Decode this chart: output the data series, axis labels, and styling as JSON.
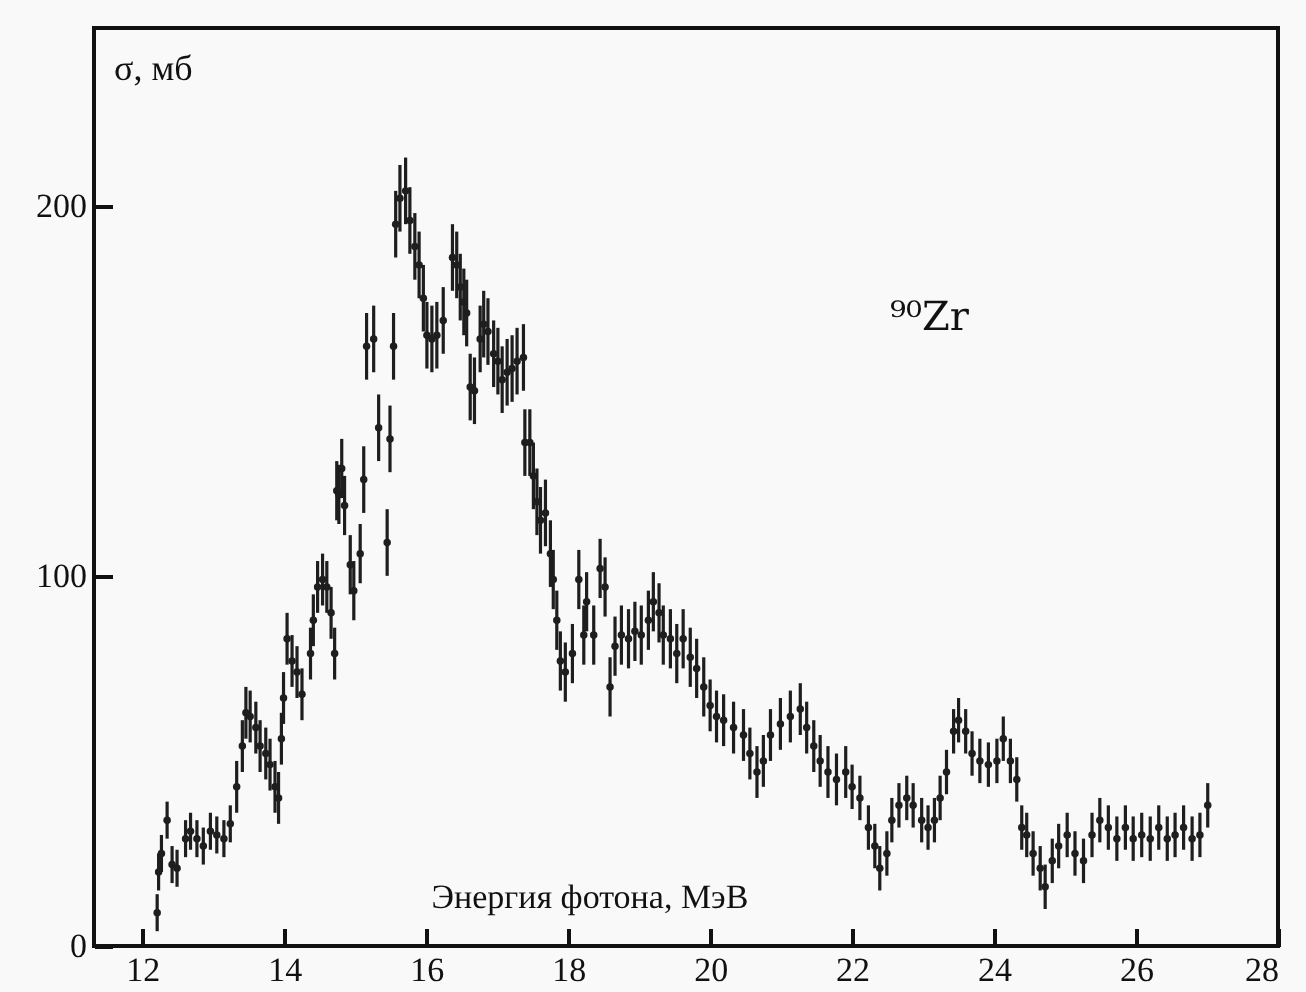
{
  "chart_data": {
    "type": "scatter",
    "ylabel": "σ, мб",
    "xlabel": "Энергия фотона, МэВ",
    "annotations": [
      "⁹⁰Zr"
    ],
    "color": "#1e1e1e",
    "marker": "circle",
    "xlim": [
      11.32,
      28
    ],
    "ylim": [
      0,
      248
    ],
    "xticks": [
      12,
      14,
      16,
      18,
      20,
      22,
      24,
      26,
      28
    ],
    "yticks": [
      0,
      100,
      200
    ],
    "x": [
      12.21,
      12.23,
      12.27,
      12.35,
      12.42,
      12.49,
      12.61,
      12.68,
      12.77,
      12.86,
      12.96,
      13.05,
      13.15,
      13.24,
      13.33,
      13.41,
      13.46,
      13.52,
      13.6,
      13.66,
      13.74,
      13.8,
      13.87,
      13.92,
      13.96,
      13.99,
      14.04,
      14.11,
      14.18,
      14.25,
      14.37,
      14.41,
      14.47,
      14.54,
      14.6,
      14.66,
      14.71,
      14.74,
      14.77,
      14.81,
      14.85,
      14.93,
      14.98,
      15.07,
      15.12,
      15.16,
      15.26,
      15.33,
      15.45,
      15.49,
      15.54,
      15.57,
      15.63,
      15.71,
      15.77,
      15.84,
      15.9,
      15.96,
      16.01,
      16.08,
      16.15,
      16.24,
      16.37,
      16.43,
      16.48,
      16.53,
      16.57,
      16.62,
      16.68,
      16.76,
      16.81,
      16.87,
      16.95,
      17.01,
      17.07,
      17.14,
      17.21,
      17.28,
      17.37,
      17.39,
      17.46,
      17.51,
      17.56,
      17.61,
      17.68,
      17.75,
      17.79,
      17.84,
      17.89,
      17.96,
      18.06,
      18.15,
      18.22,
      18.26,
      18.36,
      18.45,
      18.52,
      18.59,
      18.66,
      18.75,
      18.85,
      18.94,
      19.03,
      19.13,
      19.2,
      19.28,
      19.34,
      19.44,
      19.53,
      19.62,
      19.72,
      19.81,
      19.91,
      20.0,
      20.09,
      20.19,
      20.33,
      20.47,
      20.56,
      20.66,
      20.75,
      20.85,
      20.99,
      21.13,
      21.27,
      21.36,
      21.46,
      21.55,
      21.66,
      21.78,
      21.91,
      22.0,
      22.11,
      22.23,
      22.32,
      22.39,
      22.49,
      22.56,
      22.66,
      22.77,
      22.86,
      22.98,
      23.07,
      23.16,
      23.24,
      23.33,
      23.43,
      23.5,
      23.6,
      23.69,
      23.8,
      23.92,
      24.04,
      24.13,
      24.23,
      24.32,
      24.39,
      24.46,
      24.55,
      24.65,
      24.72,
      24.82,
      24.91,
      25.03,
      25.14,
      25.26,
      25.38,
      25.49,
      25.61,
      25.73,
      25.85,
      25.96,
      26.08,
      26.2,
      26.32,
      26.44,
      26.55,
      26.67,
      26.79,
      26.9,
      27.01
    ],
    "values": [
      9,
      20,
      25,
      34,
      22,
      21,
      29,
      31,
      29,
      27,
      31,
      30,
      29,
      33,
      43,
      54,
      63,
      62,
      59,
      54,
      52,
      49,
      43,
      40,
      56,
      67,
      83,
      77,
      74,
      68,
      79,
      88,
      97,
      99,
      97,
      90,
      79,
      123,
      122,
      129,
      119,
      103,
      96,
      106,
      126,
      162,
      164,
      140,
      109,
      137,
      162,
      195,
      202,
      204,
      196,
      189,
      184,
      175,
      165,
      164,
      165,
      169,
      186,
      184,
      178,
      174,
      171,
      151,
      150,
      164,
      168,
      166,
      160,
      158,
      153,
      155,
      156,
      158,
      159,
      136,
      136,
      127,
      120,
      115,
      117,
      106,
      99,
      88,
      77,
      74,
      79,
      99,
      84,
      93,
      84,
      102,
      97,
      70,
      81,
      84,
      83,
      85,
      84,
      88,
      93,
      90,
      84,
      83,
      79,
      83,
      78,
      75,
      70,
      65,
      62,
      61,
      59,
      57,
      52,
      47,
      50,
      57,
      60,
      62,
      64,
      59,
      54,
      50,
      47,
      45,
      47,
      43,
      40,
      32,
      27,
      21,
      25,
      34,
      38,
      40,
      38,
      34,
      32,
      34,
      40,
      47,
      58,
      61,
      58,
      52,
      50,
      49,
      50,
      56,
      50,
      45,
      32,
      30,
      25,
      21,
      16,
      23,
      27,
      30,
      25,
      23,
      30,
      34,
      32,
      29,
      32,
      29,
      30,
      29,
      32,
      29,
      30,
      32,
      29,
      30,
      38
    ],
    "errors": [
      5,
      5,
      5,
      5,
      5,
      5,
      5,
      5,
      5,
      5,
      5,
      5,
      5,
      5,
      7,
      7,
      7,
      7,
      7,
      7,
      7,
      7,
      7,
      7,
      7,
      7,
      7,
      7,
      7,
      7,
      7,
      7,
      7,
      7,
      7,
      7,
      7,
      8,
      8,
      8,
      8,
      8,
      8,
      8,
      9,
      9,
      9,
      9,
      9,
      9,
      9,
      9,
      9,
      9,
      9,
      9,
      9,
      9,
      9,
      9,
      9,
      9,
      9,
      9,
      9,
      9,
      9,
      9,
      9,
      9,
      9,
      9,
      9,
      9,
      9,
      9,
      9,
      9,
      9,
      9,
      9,
      9,
      9,
      9,
      9,
      9,
      8,
      8,
      8,
      8,
      8,
      8,
      8,
      8,
      8,
      8,
      8,
      8,
      8,
      8,
      8,
      8,
      8,
      8,
      8,
      8,
      8,
      8,
      8,
      8,
      8,
      8,
      8,
      7,
      7,
      7,
      7,
      7,
      7,
      7,
      7,
      7,
      7,
      7,
      7,
      7,
      7,
      7,
      7,
      7,
      7,
      6,
      6,
      6,
      6,
      6,
      6,
      6,
      6,
      6,
      6,
      6,
      6,
      6,
      6,
      6,
      6,
      6,
      6,
      6,
      6,
      6,
      6,
      6,
      6,
      6,
      6,
      6,
      6,
      6,
      6,
      6,
      6,
      6,
      6,
      6,
      6,
      6,
      6,
      6,
      6,
      6,
      6,
      6,
      6,
      6,
      6,
      6,
      6,
      6,
      6
    ]
  }
}
